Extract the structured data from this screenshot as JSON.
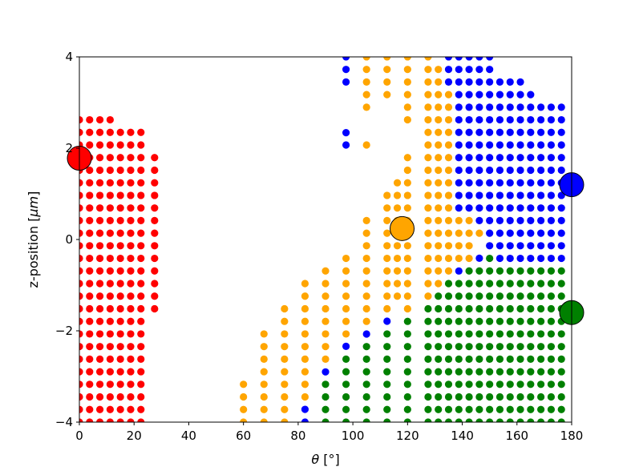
{
  "chart_data": {
    "type": "scatter",
    "title": "",
    "xlabel_italic": "θ",
    "xlabel_unit": " [°]",
    "ylabel_text": "z-position [",
    "ylabel_unit": "μm",
    "ylabel_close": "]",
    "xlim": [
      0,
      180
    ],
    "ylim": [
      -4,
      4
    ],
    "grid": false,
    "x_ticks": [
      0,
      20,
      40,
      60,
      80,
      100,
      120,
      140,
      160,
      180
    ],
    "y_ticks": [
      -4,
      -2,
      0,
      2,
      4
    ],
    "colors": {
      "red": "#ff0000",
      "orange": "#ffa500",
      "blue": "#0000ff",
      "green": "#008000"
    },
    "theta_grid": [
      0,
      3.75,
      7.5,
      11.25,
      15,
      18.75,
      22.5,
      30,
      60,
      67.5,
      75,
      82.5,
      90,
      97.5,
      105,
      112.5,
      116.25,
      120,
      127.5,
      131.25,
      135,
      138.75,
      142.5,
      146.25,
      150,
      153.75,
      157.5,
      161.25,
      165,
      168.75,
      172.5,
      176.25,
      180
    ],
    "z_grid_step": 0.2759,
    "red_region": {
      "columns": [
        {
          "x": 0,
          "z_min": -4,
          "z_max": 2.62
        },
        {
          "x": 3.75,
          "z_min": -4,
          "z_max": 2.62
        },
        {
          "x": 7.5,
          "z_min": -4,
          "z_max": 2.62
        },
        {
          "x": 11.25,
          "z_min": -4,
          "z_max": 2.62
        },
        {
          "x": 15,
          "z_min": -4,
          "z_max": 2.34
        },
        {
          "x": 18.75,
          "z_min": -4,
          "z_max": 2.34
        },
        {
          "x": 22.5,
          "z_min": -4,
          "z_max": 2.34
        },
        {
          "x": 27.5,
          "z_min": -1.52,
          "z_max": 1.79
        }
      ]
    },
    "orange_region": {
      "columns": [
        {
          "x": 60,
          "z_min": -4,
          "z_max": -3.17
        },
        {
          "x": 67.5,
          "z_min": -4,
          "z_max": -2.07
        },
        {
          "x": 75,
          "z_min": -4,
          "z_max": -1.52
        },
        {
          "x": 82.5,
          "z_min": -3.45,
          "z_max": -0.97
        },
        {
          "x": 90,
          "z_min": -2.62,
          "z_max": -0.69
        },
        {
          "x": 97.5,
          "z_min": -2.07,
          "z_max": -0.41
        },
        {
          "x": 105,
          "z_min": -1.79,
          "z_max": 0.41
        },
        {
          "x": 112.5,
          "z_min": -1.52,
          "z_max": 0.97
        },
        {
          "x": 116.25,
          "z_min": -1.24,
          "z_max": 1.24
        },
        {
          "x": 120,
          "z_min": -1.52,
          "z_max": 1.79
        },
        {
          "x": 127.5,
          "z_min": -1.24,
          "z_max": 4
        },
        {
          "x": 131.25,
          "z_min": -0.97,
          "z_max": 3.72
        },
        {
          "x": 135,
          "z_min": -0.69,
          "z_max": 3.72
        },
        {
          "x": 138.75,
          "z_min": -0.41,
          "z_max": 0.41
        },
        {
          "x": 142.5,
          "z_min": -0.41,
          "z_max": 0.41
        },
        {
          "x": 146.25,
          "z_min": 0.14,
          "z_max": 0.14
        }
      ],
      "upper_columns": [
        {
          "x": 105,
          "z_min": 2.9,
          "z_max": 4
        },
        {
          "x": 112.5,
          "z_min": 3.17,
          "z_max": 4
        },
        {
          "x": 120,
          "z_min": 2.62,
          "z_max": 4
        }
      ],
      "isolated": [
        {
          "x": 105,
          "z": 2.07
        }
      ]
    },
    "blue_region": {
      "columns": [
        {
          "x": 97.5,
          "z_min": 3.45,
          "z_max": 4
        },
        {
          "x": 135,
          "z_min": 3.45,
          "z_max": 4
        },
        {
          "x": 138.75,
          "z_min": 0.69,
          "z_max": 4
        },
        {
          "x": 142.5,
          "z_min": 0.69,
          "z_max": 4
        },
        {
          "x": 146.25,
          "z_min": 0.41,
          "z_max": 4
        },
        {
          "x": 150,
          "z_min": -0.14,
          "z_max": 4
        },
        {
          "x": 153.75,
          "z_min": -0.41,
          "z_max": 3.45
        },
        {
          "x": 157.5,
          "z_min": -0.41,
          "z_max": 3.45
        },
        {
          "x": 161.25,
          "z_min": -0.41,
          "z_max": 3.45
        },
        {
          "x": 165,
          "z_min": -0.41,
          "z_max": 3.17
        },
        {
          "x": 168.75,
          "z_min": -0.41,
          "z_max": 2.9
        },
        {
          "x": 172.5,
          "z_min": -0.41,
          "z_max": 2.9
        },
        {
          "x": 176.25,
          "z_min": -0.41,
          "z_max": 2.9
        }
      ],
      "isolated": [
        {
          "x": 97.5,
          "z": 2.34
        },
        {
          "x": 97.5,
          "z": 2.07
        },
        {
          "x": 97.5,
          "z": -2.34
        },
        {
          "x": 90,
          "z": -2.9
        },
        {
          "x": 82.5,
          "z": -3.72
        },
        {
          "x": 82.5,
          "z": -4
        },
        {
          "x": 105,
          "z": -2.07
        },
        {
          "x": 112.5,
          "z": -1.79
        },
        {
          "x": 138.75,
          "z": -0.69
        },
        {
          "x": 146.25,
          "z": -0.41
        }
      ]
    },
    "green_region": {
      "columns": [
        {
          "x": 90,
          "z_min": -4,
          "z_max": -3.17
        },
        {
          "x": 97.5,
          "z_min": -4,
          "z_max": -2.62
        },
        {
          "x": 105,
          "z_min": -4,
          "z_max": -2.34
        },
        {
          "x": 112.5,
          "z_min": -4,
          "z_max": -2.07
        },
        {
          "x": 120,
          "z_min": -4,
          "z_max": -1.79
        },
        {
          "x": 127.5,
          "z_min": -4,
          "z_max": -1.52
        },
        {
          "x": 131.25,
          "z_min": -4,
          "z_max": -1.24
        },
        {
          "x": 135,
          "z_min": -4,
          "z_max": -0.97
        },
        {
          "x": 138.75,
          "z_min": -4,
          "z_max": -0.97
        },
        {
          "x": 142.5,
          "z_min": -4,
          "z_max": -0.69
        },
        {
          "x": 146.25,
          "z_min": -4,
          "z_max": -0.69
        },
        {
          "x": 150,
          "z_min": -4,
          "z_max": -0.41
        },
        {
          "x": 153.75,
          "z_min": -4,
          "z_max": -0.41
        },
        {
          "x": 157.5,
          "z_min": -4,
          "z_max": -0.41
        },
        {
          "x": 161.25,
          "z_min": -4,
          "z_max": -0.41
        },
        {
          "x": 165,
          "z_min": -4,
          "z_max": -0.41
        },
        {
          "x": 168.75,
          "z_min": -4,
          "z_max": -0.41
        },
        {
          "x": 172.5,
          "z_min": -4,
          "z_max": -0.41
        },
        {
          "x": 176.25,
          "z_min": -4,
          "z_max": -0.41
        }
      ]
    },
    "centroids": [
      {
        "series": "red",
        "x": 0,
        "z": 1.78
      },
      {
        "series": "orange",
        "x": 118,
        "z": 0.24
      },
      {
        "series": "blue",
        "x": 180,
        "z": 1.2
      },
      {
        "series": "green",
        "x": 180,
        "z": -1.6
      }
    ]
  }
}
